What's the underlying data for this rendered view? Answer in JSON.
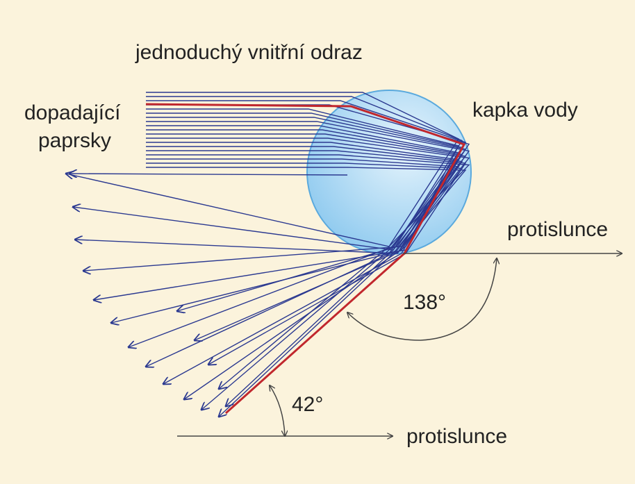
{
  "title": "jednoduchý vnitřní odraz",
  "labels": {
    "incoming": [
      "dopadající",
      "paprsky"
    ],
    "droplet": "kapka vody",
    "antisolar_right": "protislunce",
    "antisolar_bottom": "protislunce",
    "angle_large": "138°",
    "angle_small": "42°"
  }
}
